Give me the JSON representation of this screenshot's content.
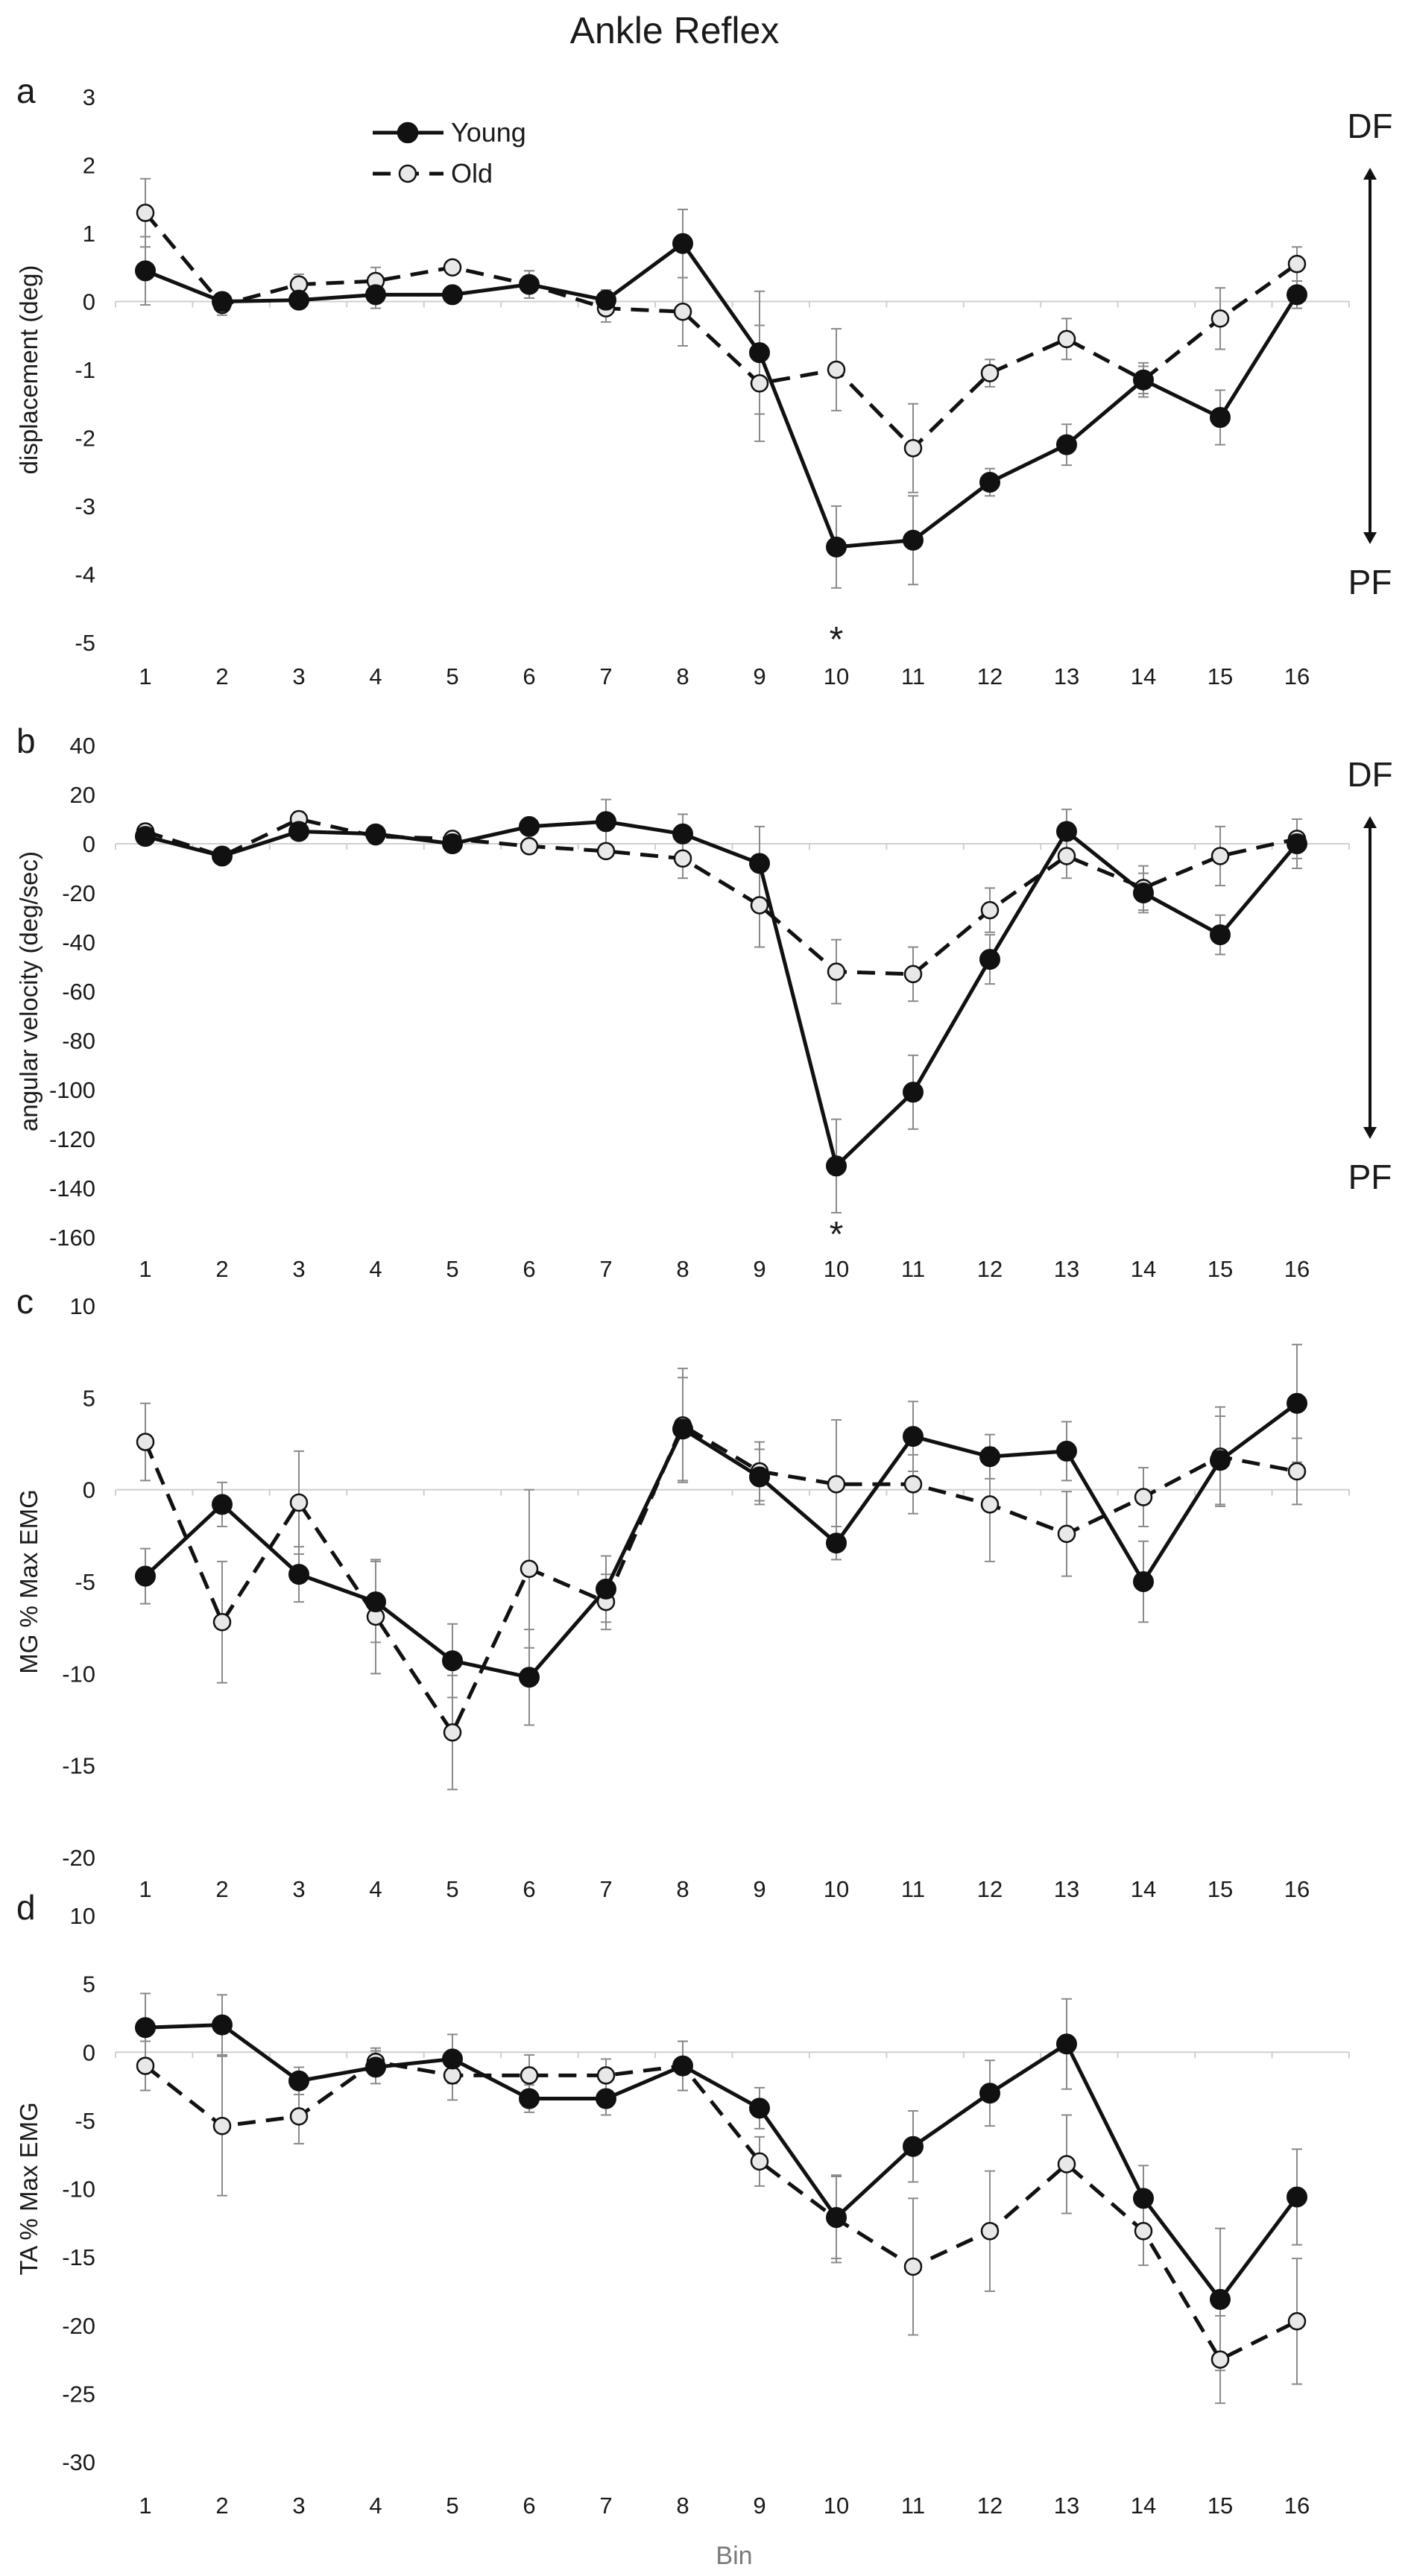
{
  "figure": {
    "title": "Ankle Reflex",
    "x_axis_label": "Bin",
    "legend": [
      {
        "name": "Young",
        "style": "solid",
        "marker_fill": "#111111"
      },
      {
        "name": "Old",
        "style": "dashed",
        "marker_fill": "#e8e8e8"
      }
    ],
    "direction_labels": {
      "up": "DF",
      "down": "PF"
    }
  },
  "chart_data": [
    {
      "type": "line",
      "panel": "a",
      "ylabel": "displacement (deg)",
      "ylim": [
        -5,
        3
      ],
      "yticks": [
        3,
        2,
        1,
        0,
        -1,
        -2,
        -3,
        -4,
        -5
      ],
      "x": [
        1,
        2,
        3,
        4,
        5,
        6,
        7,
        8,
        9,
        10,
        11,
        12,
        13,
        14,
        15,
        16
      ],
      "series": [
        {
          "name": "Young",
          "values": [
            0.45,
            0.0,
            0.02,
            0.1,
            0.1,
            0.25,
            0.02,
            0.85,
            -0.75,
            -3.6,
            -3.5,
            -2.65,
            -2.1,
            -1.15,
            -1.7,
            0.1
          ],
          "errors": [
            0.5,
            0.1,
            0.12,
            0.2,
            0.12,
            0.2,
            0.15,
            0.5,
            0.9,
            0.6,
            0.65,
            0.2,
            0.3,
            0.25,
            0.4,
            0.2
          ]
        },
        {
          "name": "Old",
          "values": [
            1.3,
            -0.05,
            0.25,
            0.3,
            0.5,
            0.25,
            -0.1,
            -0.15,
            -1.2,
            -1.0,
            -2.15,
            -1.05,
            -0.55,
            -1.15,
            -0.25,
            0.55
          ],
          "errors": [
            0.5,
            0.15,
            0.15,
            0.2,
            0.08,
            0.2,
            0.2,
            0.5,
            0.85,
            0.6,
            0.65,
            0.2,
            0.3,
            0.2,
            0.45,
            0.25
          ]
        }
      ],
      "annotations": [
        {
          "x": 10,
          "text": "*"
        }
      ],
      "direction_arrow": true
    },
    {
      "type": "line",
      "panel": "b",
      "ylabel": "angular velocity (deg/sec)",
      "ylim": [
        -160,
        40
      ],
      "yticks": [
        40,
        20,
        0,
        -20,
        -40,
        -60,
        -80,
        -100,
        -120,
        -140,
        -160
      ],
      "x": [
        1,
        2,
        3,
        4,
        5,
        6,
        7,
        8,
        9,
        10,
        11,
        12,
        13,
        14,
        15,
        16
      ],
      "series": [
        {
          "name": "Young",
          "values": [
            3,
            -5,
            5,
            4,
            0,
            7,
            9,
            4,
            -8,
            -131,
            -101,
            -47,
            5,
            -20,
            -37,
            0
          ],
          "errors": [
            3,
            2,
            3,
            2,
            2,
            3,
            9,
            8,
            15,
            19,
            15,
            10,
            9,
            8,
            8,
            10
          ]
        },
        {
          "name": "Old",
          "values": [
            5,
            -5,
            10,
            3,
            2,
            -1,
            -3,
            -6,
            -25,
            -52,
            -53,
            -27,
            -5,
            -18,
            -5,
            2
          ],
          "errors": [
            3,
            2,
            3,
            2,
            2,
            2,
            2,
            8,
            17,
            13,
            11,
            9,
            9,
            9,
            12,
            8
          ]
        }
      ],
      "annotations": [
        {
          "x": 10,
          "text": "*"
        }
      ],
      "direction_arrow": true
    },
    {
      "type": "line",
      "panel": "c",
      "ylabel": "MG % Max EMG",
      "ylim": [
        -20,
        10
      ],
      "yticks": [
        10,
        5,
        0,
        -5,
        -10,
        -15,
        -20
      ],
      "x": [
        1,
        2,
        3,
        4,
        5,
        6,
        7,
        8,
        9,
        10,
        11,
        12,
        13,
        14,
        15,
        16
      ],
      "series": [
        {
          "name": "Young",
          "values": [
            -4.7,
            -0.8,
            -4.6,
            -6.1,
            -9.3,
            -10.2,
            -5.4,
            3.3,
            0.7,
            -2.9,
            2.9,
            1.8,
            2.1,
            -5.0,
            1.6,
            4.7
          ],
          "errors": [
            1.5,
            1.2,
            1.5,
            2.2,
            2.0,
            2.6,
            1.8,
            2.8,
            1.5,
            0.9,
            1.9,
            1.2,
            1.6,
            2.2,
            2.4,
            3.2
          ]
        },
        {
          "name": "Old",
          "values": [
            2.6,
            -7.2,
            -0.7,
            -6.9,
            -13.2,
            -4.3,
            -6.1,
            3.5,
            1.0,
            0.3,
            0.3,
            -0.8,
            -2.4,
            -0.4,
            1.8,
            1.0
          ],
          "errors": [
            2.1,
            3.3,
            2.8,
            3.1,
            3.1,
            4.3,
            1.5,
            3.1,
            1.6,
            3.5,
            1.6,
            3.1,
            2.3,
            1.6,
            2.7,
            1.8
          ]
        }
      ]
    },
    {
      "type": "line",
      "panel": "d",
      "ylabel": "TA % Max EMG",
      "ylim": [
        -30,
        10
      ],
      "yticks": [
        10,
        5,
        0,
        -5,
        -10,
        -15,
        -20,
        -25,
        -30
      ],
      "x": [
        1,
        2,
        3,
        4,
        5,
        6,
        7,
        8,
        9,
        10,
        11,
        12,
        13,
        14,
        15,
        16
      ],
      "series": [
        {
          "name": "Young",
          "values": [
            1.8,
            2.0,
            -2.1,
            -1.1,
            -0.5,
            -3.4,
            -3.4,
            -1.0,
            -4.1,
            -12.1,
            -6.9,
            -3.0,
            0.6,
            -10.7,
            -18.1,
            -10.6
          ],
          "errors": [
            2.5,
            2.2,
            1.0,
            1.2,
            1.8,
            1.0,
            1.2,
            1.8,
            1.5,
            3.0,
            2.6,
            2.4,
            3.3,
            2.4,
            5.2,
            3.5
          ]
        },
        {
          "name": "Old",
          "values": [
            -1.0,
            -5.4,
            -4.7,
            -0.7,
            -1.7,
            -1.7,
            -1.7,
            -1.0,
            -8.0,
            -12.2,
            -15.7,
            -13.1,
            -8.2,
            -13.1,
            -22.5,
            -19.7
          ],
          "errors": [
            1.8,
            5.1,
            2.0,
            1.0,
            1.8,
            1.5,
            1.2,
            1.8,
            1.8,
            3.2,
            5.0,
            4.4,
            3.6,
            2.5,
            3.2,
            4.6
          ]
        }
      ]
    }
  ]
}
